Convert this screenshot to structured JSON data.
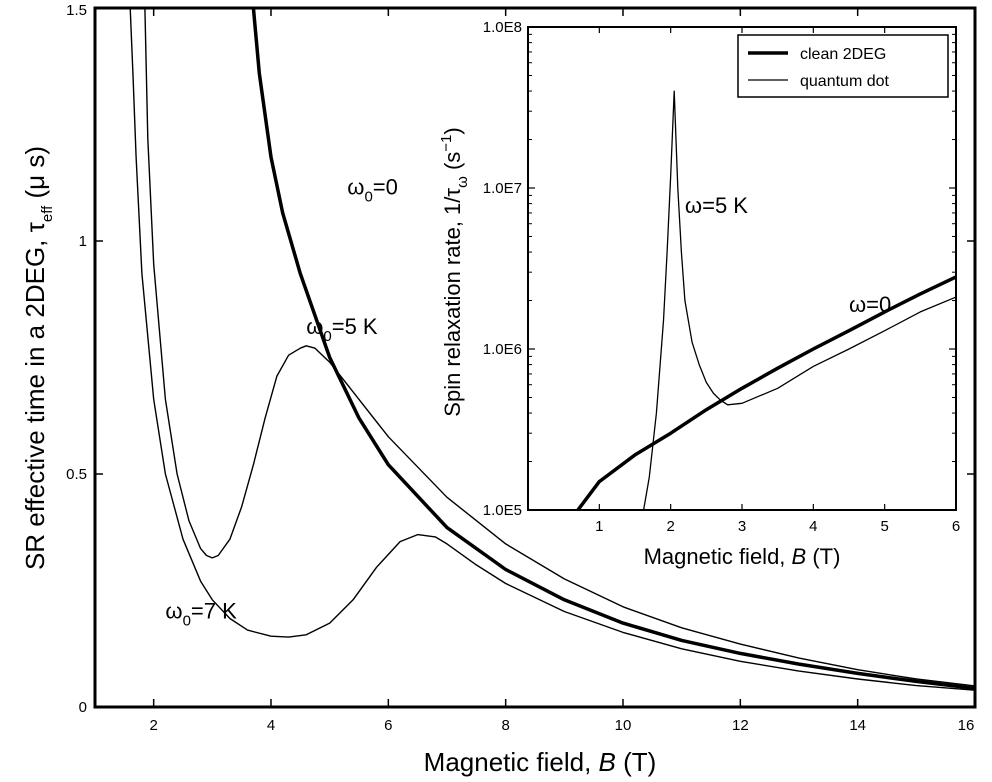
{
  "chart_data": [
    {
      "type": "line",
      "xlabel": "Magnetic field,  B  (T)",
      "xlabel_parts": [
        "Magnetic field,  ",
        "B",
        "  (T)"
      ],
      "ylabel_parts": [
        "SR effective time in a 2DEG, τ",
        "eff",
        "  (μ s)"
      ],
      "xlim": [
        1,
        16
      ],
      "ylim": [
        0,
        1.5
      ],
      "x_ticks": [
        2,
        4,
        6,
        8,
        10,
        12,
        14,
        16
      ],
      "y_ticks": [
        0,
        0.5,
        1,
        1.5
      ],
      "x_tick_labels": [
        "2",
        "4",
        "6",
        "8",
        "10",
        "12",
        "14",
        "16"
      ],
      "y_tick_labels": [
        "0",
        "0.5",
        "1",
        "1.5"
      ],
      "annotations": [
        {
          "base": "ω",
          "sub": "0",
          "rest": "=0",
          "x": 5.3,
          "y": 1.1
        },
        {
          "base": "ω",
          "sub": "0",
          "rest": "=5 K",
          "x": 4.6,
          "y": 0.8
        },
        {
          "base": "ω",
          "sub": "0",
          "rest": "=7 K",
          "x": 2.2,
          "y": 0.19
        }
      ],
      "series": [
        {
          "key": "omega0_0",
          "style": "thick",
          "x": [
            3.7,
            3.8,
            4.0,
            4.2,
            4.5,
            5.0,
            5.5,
            6.0,
            7.0,
            8.0,
            9.0,
            10.0,
            11.0,
            12.0,
            13.0,
            14.0,
            15.0,
            16.0
          ],
          "y": [
            1.5,
            1.36,
            1.18,
            1.06,
            0.93,
            0.75,
            0.62,
            0.52,
            0.385,
            0.295,
            0.23,
            0.18,
            0.143,
            0.115,
            0.092,
            0.072,
            0.055,
            0.04
          ]
        },
        {
          "key": "omega0_5K",
          "style": "thin",
          "x": [
            1.85,
            1.9,
            2.0,
            2.2,
            2.4,
            2.6,
            2.8,
            2.9,
            3.0,
            3.1,
            3.3,
            3.5,
            3.7,
            3.9,
            4.1,
            4.3,
            4.5,
            4.6,
            4.75,
            5.0,
            5.5,
            6.0,
            7.0,
            8.0,
            9.0,
            10.0,
            11.0,
            12.0,
            13.0,
            14.0,
            15.0,
            16.0
          ],
          "y": [
            1.5,
            1.22,
            0.95,
            0.66,
            0.5,
            0.4,
            0.34,
            0.325,
            0.32,
            0.325,
            0.36,
            0.43,
            0.52,
            0.62,
            0.71,
            0.755,
            0.77,
            0.775,
            0.77,
            0.74,
            0.66,
            0.58,
            0.45,
            0.35,
            0.275,
            0.215,
            0.17,
            0.135,
            0.105,
            0.08,
            0.06,
            0.045
          ]
        },
        {
          "key": "omega0_7K",
          "style": "thin",
          "x": [
            1.6,
            1.65,
            1.7,
            1.8,
            2.0,
            2.2,
            2.5,
            2.8,
            3.0,
            3.3,
            3.6,
            4.0,
            4.3,
            4.6,
            5.0,
            5.4,
            5.8,
            6.2,
            6.5,
            6.8,
            7.0,
            7.5,
            8.0,
            9.0,
            10.0,
            11.0,
            12.0,
            13.0,
            14.0,
            15.0,
            16.0
          ],
          "y": [
            1.5,
            1.35,
            1.18,
            0.93,
            0.66,
            0.5,
            0.36,
            0.27,
            0.23,
            0.19,
            0.165,
            0.152,
            0.15,
            0.155,
            0.18,
            0.23,
            0.3,
            0.355,
            0.37,
            0.365,
            0.35,
            0.305,
            0.265,
            0.205,
            0.16,
            0.125,
            0.098,
            0.077,
            0.06,
            0.046,
            0.036
          ]
        }
      ]
    },
    {
      "type": "line",
      "xlabel": "Magnetic field,  B  (T)",
      "xlabel_parts": [
        "Magnetic field,  ",
        "B",
        "  (T)"
      ],
      "ylabel_parts": [
        "Spin relaxation rate, 1/τ",
        "ω",
        "  (s",
        "−1",
        ")"
      ],
      "xlim": [
        0,
        6
      ],
      "ylim": [
        100000,
        100000000
      ],
      "y_scale": "log",
      "x_ticks": [
        1,
        2,
        3,
        4,
        5,
        6
      ],
      "x_tick_labels": [
        "1",
        "2",
        "3",
        "4",
        "5",
        "6"
      ],
      "y_ticks": [
        100000,
        1000000,
        10000000,
        100000000
      ],
      "y_tick_labels": [
        "1.0E5",
        "1.0E6",
        "1.0E7",
        "1.0E8"
      ],
      "legend_position": "top-right",
      "annotations": [
        {
          "text": "ω=5 K",
          "x": 2.2,
          "y": 7000000
        },
        {
          "text": "ω=0",
          "x": 4.5,
          "y": 1700000
        }
      ],
      "series": [
        {
          "name": "clean 2DEG",
          "key": "omega_0",
          "style": "thick",
          "x": [
            0.7,
            1.0,
            1.5,
            2.0,
            2.5,
            3.0,
            3.5,
            4.0,
            4.5,
            5.0,
            5.5,
            6.0
          ],
          "y": [
            100000,
            150000,
            220000,
            300000,
            420000,
            570000,
            760000,
            1000000,
            1300000,
            1700000,
            2200000,
            2800000
          ]
        },
        {
          "name": "quantum dot",
          "key": "omega_5K",
          "style": "thin",
          "x": [
            1.62,
            1.7,
            1.8,
            1.9,
            1.95,
            2.0,
            2.05,
            2.1,
            2.15,
            2.2,
            2.3,
            2.4,
            2.5,
            2.6,
            2.7,
            2.8,
            3.0,
            3.5,
            4.0,
            4.5,
            5.0,
            5.5,
            6.0
          ],
          "y": [
            100000,
            160000,
            400000,
            1500000,
            4000000,
            12000000,
            40000000,
            10000000,
            4000000,
            2000000,
            1100000,
            800000,
            620000,
            530000,
            480000,
            450000,
            460000,
            570000,
            780000,
            1000000,
            1300000,
            1700000,
            2100000
          ]
        }
      ]
    }
  ]
}
